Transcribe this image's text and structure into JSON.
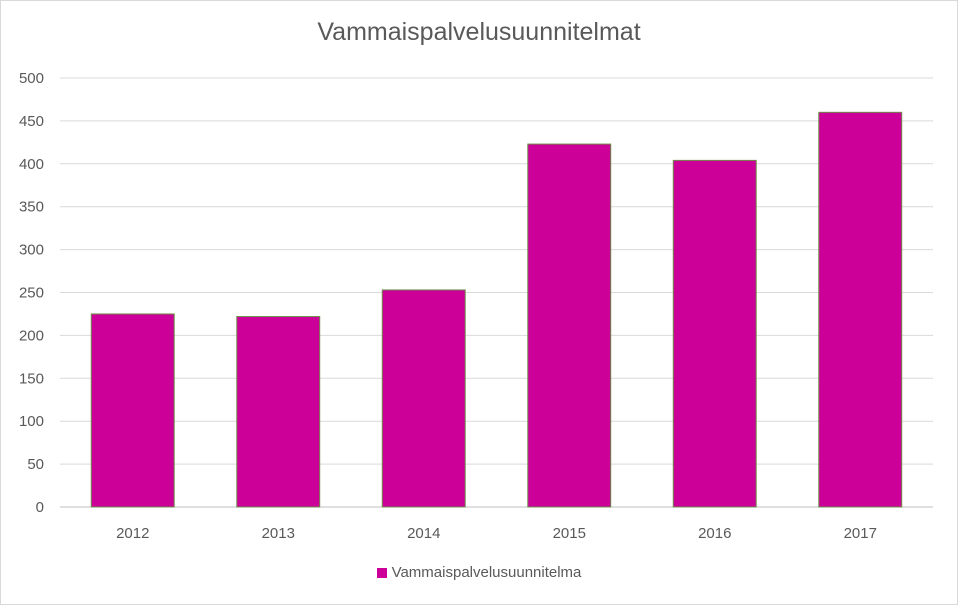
{
  "chart_data": {
    "type": "bar",
    "title": "Vammaispalvelusuunnitelmat",
    "categories": [
      "2012",
      "2013",
      "2014",
      "2015",
      "2016",
      "2017"
    ],
    "series": [
      {
        "name": "Vammaispalvelusuunnitelma",
        "values": [
          225,
          222,
          253,
          423,
          404,
          460
        ],
        "color": "#cc0099"
      }
    ],
    "ylim": [
      0,
      500
    ],
    "yticks": [
      0,
      50,
      100,
      150,
      200,
      250,
      300,
      350,
      400,
      450,
      500
    ],
    "grid": true,
    "legend": "bottom"
  }
}
